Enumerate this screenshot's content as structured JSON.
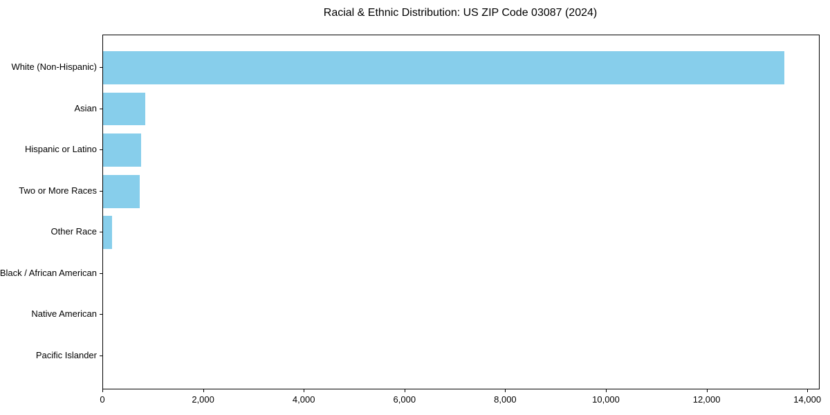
{
  "chart_data": {
    "type": "bar",
    "orientation": "horizontal",
    "title": "Racial & Ethnic Distribution: US ZIP Code 03087 (2024)",
    "categories": [
      "White (Non-Hispanic)",
      "Asian",
      "Hispanic or Latino",
      "Two or More Races",
      "Other Race",
      "Black / African American",
      "Native American",
      "Pacific Islander"
    ],
    "values": [
      13530,
      840,
      760,
      730,
      180,
      0,
      0,
      0
    ],
    "xlabel": "",
    "ylabel": "",
    "xlim": [
      0,
      14217
    ],
    "x_ticks": [
      0,
      2000,
      4000,
      6000,
      8000,
      10000,
      12000,
      14000
    ],
    "x_tick_labels": [
      "0",
      "2,000",
      "4,000",
      "6,000",
      "8,000",
      "10,000",
      "12,000",
      "14,000"
    ],
    "bar_color": "#87CEEB",
    "axis_color": "#000000",
    "text_color": "#000000",
    "grid": false,
    "legend": null
  }
}
